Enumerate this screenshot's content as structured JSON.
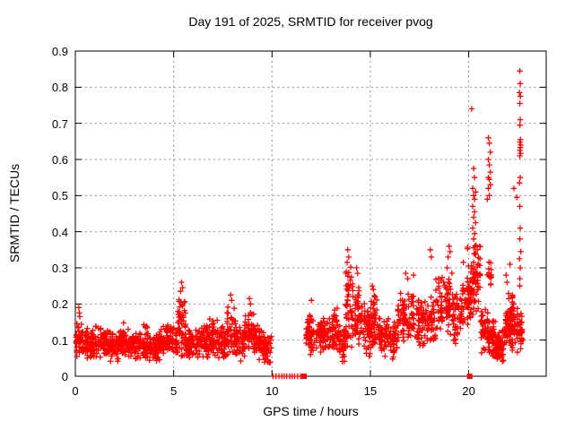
{
  "chart_data": {
    "type": "scatter",
    "title": "Day 191 of 2025, SRMTID for receiver pvog",
    "xlabel": "GPS time / hours",
    "ylabel": "SRMTID / TECUs",
    "xlim": [
      0,
      23.94
    ],
    "ylim": [
      0,
      0.9
    ],
    "xticks": [
      {
        "v": 0,
        "label": "0"
      },
      {
        "v": 5,
        "label": "5"
      },
      {
        "v": 10,
        "label": "10"
      },
      {
        "v": 15,
        "label": "15"
      },
      {
        "v": 20,
        "label": "20"
      }
    ],
    "yticks": [
      {
        "v": 0.0,
        "label": "0"
      },
      {
        "v": 0.1,
        "label": "0.1"
      },
      {
        "v": 0.2,
        "label": "0.2"
      },
      {
        "v": 0.3,
        "label": "0.3"
      },
      {
        "v": 0.4,
        "label": "0.4"
      },
      {
        "v": 0.5,
        "label": "0.5"
      },
      {
        "v": 0.6,
        "label": "0.6"
      },
      {
        "v": 0.7,
        "label": "0.7"
      },
      {
        "v": 0.8,
        "label": "0.8"
      },
      {
        "v": 0.9,
        "label": "0.9"
      }
    ],
    "grid": "dotted",
    "legend": "none",
    "marker": "plus",
    "marker_color": "#ff0000",
    "grid_color": "#8f8f8f",
    "frame_color": "#000000",
    "background_color": "#ffffff",
    "series_bands": [
      [
        0.02,
        0.35,
        0.105,
        0.055,
        40
      ],
      [
        0.35,
        1.0,
        0.09,
        0.048,
        75
      ],
      [
        1.0,
        1.5,
        0.1,
        0.05,
        55
      ],
      [
        1.5,
        2.3,
        0.085,
        0.048,
        85
      ],
      [
        2.3,
        2.7,
        0.1,
        0.052,
        45
      ],
      [
        2.7,
        3.3,
        0.085,
        0.045,
        65
      ],
      [
        3.3,
        3.7,
        0.1,
        0.052,
        45
      ],
      [
        3.7,
        4.3,
        0.082,
        0.046,
        65
      ],
      [
        4.3,
        4.75,
        0.105,
        0.052,
        50
      ],
      [
        4.75,
        5.2,
        0.1,
        0.05,
        50
      ],
      [
        5.2,
        5.6,
        0.14,
        0.1,
        50
      ],
      [
        5.6,
        6.3,
        0.095,
        0.05,
        75
      ],
      [
        6.3,
        6.8,
        0.1,
        0.055,
        55
      ],
      [
        6.8,
        7.25,
        0.11,
        0.06,
        50
      ],
      [
        7.25,
        7.7,
        0.095,
        0.05,
        50
      ],
      [
        7.7,
        8.1,
        0.125,
        0.08,
        45
      ],
      [
        8.1,
        8.6,
        0.1,
        0.06,
        55
      ],
      [
        8.6,
        9.1,
        0.115,
        0.075,
        55
      ],
      [
        9.1,
        9.6,
        0.1,
        0.055,
        55
      ],
      [
        9.6,
        10.0,
        0.075,
        0.05,
        45
      ],
      [
        11.7,
        12.2,
        0.12,
        0.065,
        55
      ],
      [
        12.2,
        12.9,
        0.115,
        0.055,
        75
      ],
      [
        12.9,
        13.4,
        0.125,
        0.07,
        55
      ],
      [
        13.4,
        13.75,
        0.09,
        0.06,
        40
      ],
      [
        13.75,
        14.1,
        0.2,
        0.13,
        50
      ],
      [
        14.1,
        14.6,
        0.17,
        0.1,
        55
      ],
      [
        14.6,
        15.0,
        0.13,
        0.08,
        45
      ],
      [
        15.0,
        15.4,
        0.15,
        0.085,
        50
      ],
      [
        15.4,
        16.0,
        0.115,
        0.06,
        65
      ],
      [
        16.0,
        16.4,
        0.1,
        0.055,
        45
      ],
      [
        16.4,
        17.3,
        0.165,
        0.085,
        85
      ],
      [
        17.3,
        18.3,
        0.15,
        0.08,
        95
      ],
      [
        18.3,
        19.2,
        0.2,
        0.1,
        85
      ],
      [
        19.2,
        19.7,
        0.165,
        0.08,
        55
      ],
      [
        19.7,
        20.2,
        0.24,
        0.12,
        60
      ],
      [
        20.2,
        20.6,
        0.27,
        0.13,
        55
      ],
      [
        20.6,
        21.0,
        0.13,
        0.07,
        50
      ],
      [
        20.8,
        21.2,
        0.28,
        0.05,
        14
      ],
      [
        21.0,
        21.35,
        0.11,
        0.06,
        45
      ],
      [
        21.35,
        21.8,
        0.085,
        0.05,
        60
      ],
      [
        21.8,
        22.3,
        0.15,
        0.09,
        75
      ],
      [
        22.3,
        22.75,
        0.13,
        0.07,
        45
      ]
    ],
    "outlier_points": [
      [
        0.18,
        0.19
      ],
      [
        0.2,
        0.175
      ],
      [
        0.23,
        0.165
      ],
      [
        5.35,
        0.235
      ],
      [
        5.4,
        0.26
      ],
      [
        5.45,
        0.245
      ],
      [
        7.9,
        0.225
      ],
      [
        7.95,
        0.21
      ],
      [
        8.85,
        0.215
      ],
      [
        8.9,
        0.2
      ],
      [
        12.0,
        0.21
      ],
      [
        13.82,
        0.315
      ],
      [
        13.85,
        0.35
      ],
      [
        13.9,
        0.33
      ],
      [
        14.3,
        0.3
      ],
      [
        14.35,
        0.285
      ],
      [
        15.1,
        0.25
      ],
      [
        15.15,
        0.24
      ],
      [
        16.8,
        0.285
      ],
      [
        16.9,
        0.27
      ],
      [
        17.2,
        0.28
      ],
      [
        18.05,
        0.35
      ],
      [
        18.1,
        0.33
      ],
      [
        18.9,
        0.3
      ],
      [
        19.0,
        0.36
      ],
      [
        19.05,
        0.345
      ],
      [
        18.95,
        0.33
      ],
      [
        20.15,
        0.74
      ],
      [
        20.25,
        0.575
      ],
      [
        20.3,
        0.55
      ],
      [
        20.2,
        0.52
      ],
      [
        20.35,
        0.51
      ],
      [
        20.25,
        0.5
      ],
      [
        20.3,
        0.49
      ],
      [
        20.2,
        0.47
      ],
      [
        20.3,
        0.455
      ],
      [
        20.25,
        0.44
      ],
      [
        20.35,
        0.425
      ],
      [
        20.2,
        0.41
      ],
      [
        20.3,
        0.395
      ],
      [
        20.25,
        0.38
      ],
      [
        20.95,
        0.49
      ],
      [
        21.0,
        0.66
      ],
      [
        21.0,
        0.6
      ],
      [
        21.0,
        0.55
      ],
      [
        21.0,
        0.52
      ],
      [
        21.05,
        0.645
      ],
      [
        21.05,
        0.585
      ],
      [
        21.05,
        0.545
      ],
      [
        21.05,
        0.5
      ],
      [
        21.1,
        0.62
      ],
      [
        21.1,
        0.565
      ],
      [
        21.1,
        0.53
      ],
      [
        21.9,
        0.28
      ],
      [
        21.95,
        0.26
      ],
      [
        22.1,
        0.31
      ],
      [
        22.3,
        0.52
      ],
      [
        22.45,
        0.495
      ],
      [
        22.58,
        0.785
      ],
      [
        22.58,
        0.535
      ],
      [
        22.58,
        0.325
      ],
      [
        22.6,
        0.845
      ],
      [
        22.6,
        0.755
      ],
      [
        22.6,
        0.695
      ],
      [
        22.6,
        0.648
      ],
      [
        22.6,
        0.625
      ],
      [
        22.6,
        0.61
      ],
      [
        22.6,
        0.47
      ],
      [
        22.6,
        0.38
      ],
      [
        22.6,
        0.27
      ],
      [
        22.6,
        0.25
      ],
      [
        22.62,
        0.81
      ],
      [
        22.62,
        0.71
      ],
      [
        22.62,
        0.633
      ],
      [
        22.62,
        0.55
      ],
      [
        22.62,
        0.41
      ],
      [
        22.62,
        0.3
      ],
      [
        22.63,
        0.775
      ],
      [
        22.63,
        0.655
      ],
      [
        22.64,
        0.617
      ],
      [
        22.65,
        0.64
      ],
      [
        22.65,
        0.345
      ],
      [
        22.7,
        0.15
      ],
      [
        22.72,
        0.12
      ],
      [
        22.75,
        0.1
      ]
    ],
    "zero_plus_points": [
      10.05,
      10.2,
      10.35,
      10.5,
      10.62,
      10.75,
      10.9,
      11.02,
      11.15,
      11.3,
      11.45
    ],
    "zero_square_points": [
      [
        11.63,
        0
      ],
      [
        20.05,
        0
      ]
    ]
  }
}
